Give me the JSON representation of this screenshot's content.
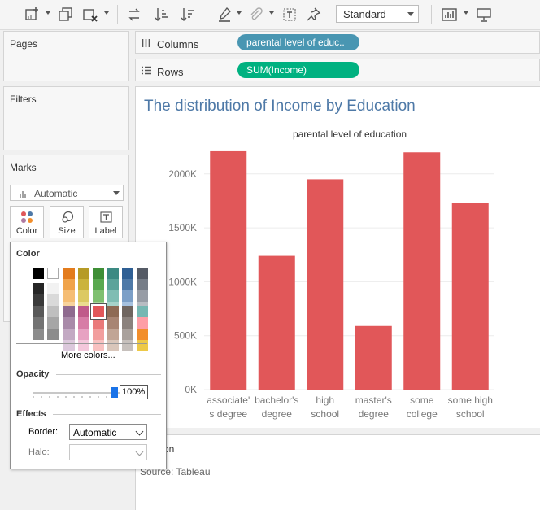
{
  "toolbar": {
    "style_select": "Standard",
    "buttons": [
      "new-worksheet-icon",
      "duplicate-icon",
      "clear-sheet-icon",
      "swap-icon",
      "sort-ascending-icon",
      "sort-descending-icon",
      "highlight-icon",
      "paperclip-icon",
      "text-label-icon",
      "pin-icon",
      "show-me-icon",
      "presentation-icon"
    ]
  },
  "panels": {
    "pages": "Pages",
    "filters": "Filters",
    "marks": "Marks",
    "mark_type": "Automatic",
    "mark_buttons": [
      "Color",
      "Size",
      "Label"
    ]
  },
  "shelves": {
    "columns": {
      "label": "Columns",
      "pill": "parental level of educ..",
      "pill_color": "#4996b2"
    },
    "rows": {
      "label": "Rows",
      "pill": "SUM(Income)",
      "pill_color": "#00b180"
    }
  },
  "viz": {
    "title": "The distribution of Income by Education",
    "caption_fragment": "on",
    "source": "Source: Tableau"
  },
  "chart_data": {
    "type": "bar",
    "title": "The distribution of Income by Education",
    "header": "parental level of education",
    "categories": [
      "associate's degree",
      "bachelor's degree",
      "high school",
      "master's degree",
      "some college",
      "some high school"
    ],
    "category_lines": [
      [
        "associate'",
        "s degree"
      ],
      [
        "bachelor's",
        "degree"
      ],
      [
        "high",
        "school"
      ],
      [
        "master's",
        "degree"
      ],
      [
        "some",
        "college"
      ],
      [
        "some high",
        "school"
      ]
    ],
    "values": [
      2210000,
      1240000,
      1950000,
      590000,
      2200000,
      1730000
    ],
    "ylabel": "",
    "ylim": [
      0,
      2300000
    ],
    "yticks": [
      0,
      500000,
      1000000,
      1500000,
      2000000
    ],
    "ytick_labels": [
      "0K",
      "500K",
      "1000K",
      "1500K",
      "2000K"
    ],
    "bar_color": "#e15759",
    "grid": true
  },
  "color_popup": {
    "title": "Color",
    "more_colors": "More colors...",
    "opacity_title": "Opacity",
    "opacity_value": "100%",
    "opacity_level": 1.0,
    "effects_title": "Effects",
    "border_label": "Border:",
    "border_value": "Automatic",
    "halo_label": "Halo:",
    "halo_value": "",
    "selected_color": "#e15759"
  }
}
